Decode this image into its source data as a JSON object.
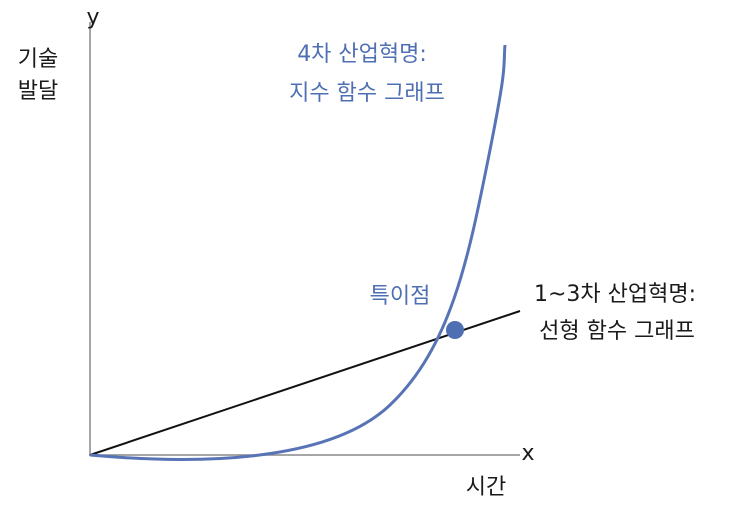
{
  "axis": {
    "y_label": "y",
    "y_title": [
      "기술",
      "발달"
    ],
    "x_label": "x",
    "x_title": "시간"
  },
  "exponential": {
    "label": [
      "4차 산업혁명:",
      "지수 함수 그래프"
    ]
  },
  "linear": {
    "label": [
      "1~3차 산업혁명:",
      "선형 함수 그래프"
    ]
  },
  "singularity": {
    "label": "특이점"
  }
}
